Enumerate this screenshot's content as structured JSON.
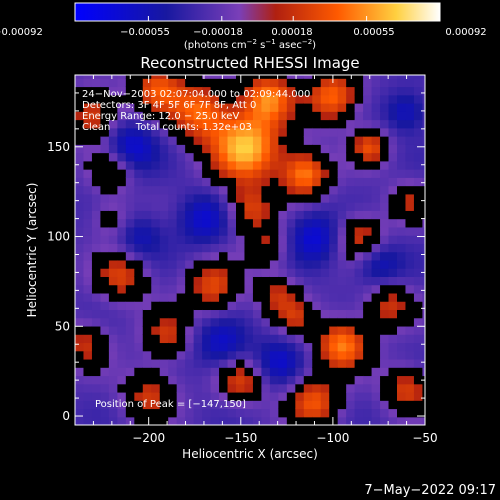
{
  "chart_data": {
    "type": "heatmap",
    "title": "Reconstructed RHESSI Image",
    "xlabel": "Heliocentric X (arcsec)",
    "ylabel": "Heliocentric Y (arcsec)",
    "xlim": [
      -240,
      -50
    ],
    "ylim": [
      -5,
      190
    ],
    "x_ticks": [
      -200,
      -150,
      -100,
      -50
    ],
    "x_tick_labels": [
      "−200",
      "−150",
      "−100",
      "−50"
    ],
    "y_ticks": [
      0,
      50,
      100,
      150
    ],
    "y_tick_labels": [
      "0",
      "50",
      "100",
      "150"
    ],
    "colorbar": {
      "range": [
        -0.00092,
        0.00092
      ],
      "ticks": [
        -0.00092,
        -0.00055,
        -0.00018,
        0.00018,
        0.00055,
        0.00092
      ],
      "tick_labels": [
        "−0.00092",
        "−0.00055",
        "−0.00018",
        "0.00018",
        "0.00055",
        "0.00092"
      ],
      "unit_main": "(photons cm",
      "unit_exp1": "−2",
      "unit_mid": " s",
      "unit_exp2": "−1",
      "unit_end": " asec",
      "unit_exp3": "−2",
      "unit_close": ")"
    },
    "annotations": [
      "24−Nov−2003 02:07:04.000 to 02:09:44.000",
      "Detectors: 3F 4F 5F 6F 7F 8F, Att 0",
      "Energy Range: 12.0 − 25.0 keV",
      "Clean        Total counts: 1.32e+03"
    ],
    "peak_label": "Position of Peak = [−147,150]",
    "peak": [
      -147,
      150
    ],
    "blobs": [
      [
        -147,
        150,
        1.0,
        14
      ],
      [
        -135,
        178,
        0.75,
        10
      ],
      [
        -172,
        170,
        0.7,
        11
      ],
      [
        -195,
        183,
        0.65,
        10
      ],
      [
        -230,
        168,
        0.6,
        10
      ],
      [
        -100,
        178,
        0.75,
        10
      ],
      [
        -80,
        150,
        0.6,
        7
      ],
      [
        -115,
        135,
        0.8,
        9
      ],
      [
        -58,
        120,
        0.4,
        8
      ],
      [
        -220,
        137,
        0.45,
        8
      ],
      [
        -145,
        115,
        0.55,
        9
      ],
      [
        -85,
        100,
        0.55,
        9
      ],
      [
        -135,
        95,
        0.4,
        8
      ],
      [
        -215,
        78,
        0.55,
        10
      ],
      [
        -165,
        72,
        0.6,
        10
      ],
      [
        -130,
        68,
        0.45,
        8
      ],
      [
        -70,
        62,
        0.5,
        9
      ],
      [
        -95,
        40,
        0.8,
        10
      ],
      [
        -120,
        55,
        0.4,
        7
      ],
      [
        -190,
        45,
        0.5,
        9
      ],
      [
        -60,
        15,
        0.55,
        9
      ],
      [
        -110,
        8,
        0.65,
        10
      ],
      [
        -150,
        20,
        0.55,
        9
      ],
      [
        -200,
        12,
        0.5,
        10
      ],
      [
        -235,
        40,
        0.45,
        9
      ],
      [
        -220,
        110,
        0.3,
        8
      ],
      [
        -170,
        110,
        -0.45,
        10
      ],
      [
        -210,
        150,
        -0.5,
        10
      ],
      [
        -110,
        100,
        -0.5,
        10
      ],
      [
        -160,
        40,
        -0.45,
        10
      ],
      [
        -75,
        85,
        -0.4,
        9
      ],
      [
        -205,
        100,
        -0.35,
        9
      ],
      [
        -130,
        30,
        -0.4,
        9
      ],
      [
        -60,
        170,
        -0.4,
        8
      ]
    ]
  },
  "footer": {
    "datetime": "7−May−2022 09:17"
  }
}
